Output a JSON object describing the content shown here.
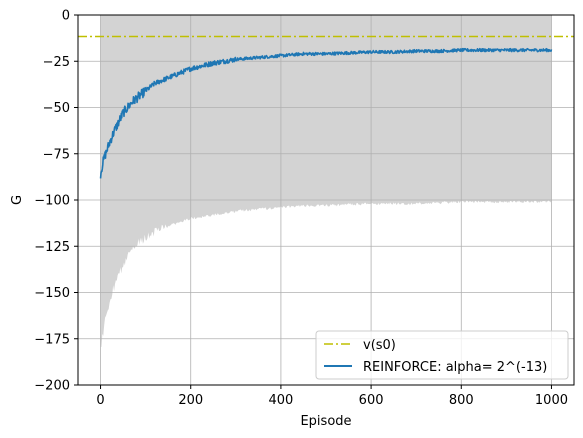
{
  "chart_data": {
    "type": "line",
    "xlabel": "Episode",
    "ylabel": "G",
    "xlim": [
      -50,
      1050
    ],
    "ylim": [
      -200,
      0
    ],
    "x_ticks": [
      0,
      200,
      400,
      600,
      800,
      1000
    ],
    "y_ticks": [
      -200,
      -175,
      -150,
      -125,
      -100,
      -75,
      -50,
      -25,
      0
    ],
    "grid": true,
    "legend_position": "bottom-right",
    "series": [
      {
        "name": "v(s0)",
        "kind": "hline",
        "style": "dash-dot",
        "color": "#bfbf00",
        "y": -11.6
      },
      {
        "name": "REINFORCE: alpha= 2^(-13)",
        "kind": "line",
        "color": "#1f77b4",
        "points": [
          [
            0,
            -86
          ],
          [
            5,
            -80
          ],
          [
            10,
            -76
          ],
          [
            20,
            -69
          ],
          [
            30,
            -63
          ],
          [
            40,
            -58
          ],
          [
            50,
            -53
          ],
          [
            60,
            -50
          ],
          [
            70,
            -47
          ],
          [
            80,
            -45
          ],
          [
            90,
            -43
          ],
          [
            100,
            -41
          ],
          [
            120,
            -37
          ],
          [
            140,
            -35
          ],
          [
            160,
            -33
          ],
          [
            180,
            -31
          ],
          [
            200,
            -29
          ],
          [
            250,
            -26
          ],
          [
            300,
            -24
          ],
          [
            350,
            -23
          ],
          [
            400,
            -22
          ],
          [
            450,
            -21
          ],
          [
            500,
            -21
          ],
          [
            550,
            -20.5
          ],
          [
            600,
            -20
          ],
          [
            650,
            -20
          ],
          [
            700,
            -19.5
          ],
          [
            750,
            -19.5
          ],
          [
            800,
            -19
          ],
          [
            850,
            -19
          ],
          [
            900,
            -19
          ],
          [
            950,
            -19
          ],
          [
            1000,
            -19
          ]
        ]
      }
    ],
    "shaded_band": {
      "color": "#d3d3d3",
      "x_start": 0,
      "x_end": 1000,
      "upper": 0,
      "lower_points": [
        [
          0,
          -180
        ],
        [
          10,
          -165
        ],
        [
          25,
          -150
        ],
        [
          50,
          -135
        ],
        [
          75,
          -125
        ],
        [
          100,
          -120
        ],
        [
          150,
          -114
        ],
        [
          200,
          -110
        ],
        [
          250,
          -108
        ],
        [
          300,
          -106
        ],
        [
          350,
          -105
        ],
        [
          400,
          -104
        ],
        [
          450,
          -103
        ],
        [
          500,
          -103
        ],
        [
          600,
          -102
        ],
        [
          700,
          -102
        ],
        [
          800,
          -101
        ],
        [
          900,
          -101
        ],
        [
          1000,
          -101
        ]
      ]
    }
  }
}
